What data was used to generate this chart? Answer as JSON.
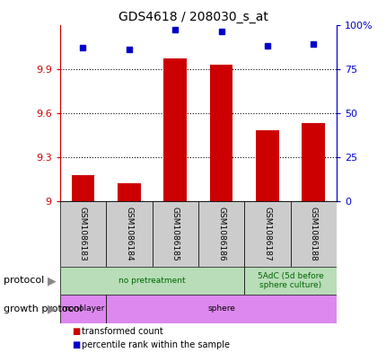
{
  "title": "GDS4618 / 208030_s_at",
  "samples": [
    "GSM1086183",
    "GSM1086184",
    "GSM1086185",
    "GSM1086186",
    "GSM1086187",
    "GSM1086188"
  ],
  "transformed_counts": [
    9.18,
    9.12,
    9.97,
    9.93,
    9.48,
    9.53
  ],
  "percentile_ranks": [
    87,
    86,
    97,
    96,
    88,
    89
  ],
  "ylim_left": [
    9.0,
    10.2
  ],
  "ylim_right": [
    0,
    100
  ],
  "yticks_left": [
    9.0,
    9.3,
    9.6,
    9.9
  ],
  "yticks_right": [
    0,
    25,
    50,
    75,
    100
  ],
  "ytick_labels_left": [
    "9",
    "9.3",
    "9.6",
    "9.9"
  ],
  "ytick_labels_right": [
    "0",
    "25",
    "50",
    "75",
    "100%"
  ],
  "bar_color": "#cc0000",
  "dot_color": "#0000cc",
  "bar_width": 0.5,
  "sample_box_color": "#cccccc",
  "left_axis_color": "#cc0000",
  "right_axis_color": "#0000cc",
  "proto_groups": [
    {
      "start": 0,
      "end": 4,
      "label": "no pretreatment",
      "color": "#b8ddb8",
      "text_color": "#006600"
    },
    {
      "start": 4,
      "end": 6,
      "label": "5AdC (5d before\nsphere culture)",
      "color": "#b8ddb8",
      "text_color": "#006600"
    }
  ],
  "growth_groups": [
    {
      "start": 0,
      "end": 1,
      "label": "monolayer",
      "color": "#dd88ee"
    },
    {
      "start": 1,
      "end": 6,
      "label": "sphere",
      "color": "#dd88ee"
    }
  ]
}
